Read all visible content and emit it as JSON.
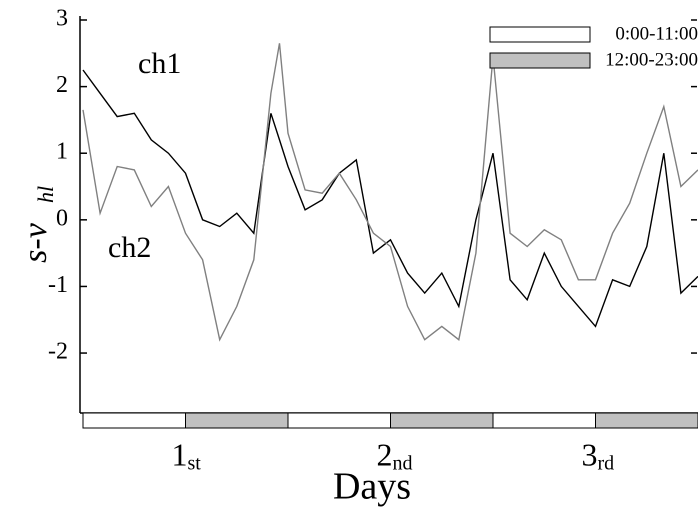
{
  "chart_data": {
    "type": "line",
    "xlabel": "Days",
    "ylabel": "s-v",
    "ylabel_sub": "hl",
    "xlim": [
      0,
      72
    ],
    "ylim": [
      -2.9,
      3
    ],
    "yticks": [
      -2,
      -1,
      0,
      1,
      2,
      3
    ],
    "xticks": [
      {
        "value": 12,
        "label": "1",
        "suffix": "st"
      },
      {
        "value": 36,
        "label": "2",
        "suffix": "nd"
      },
      {
        "value": 60,
        "label": "3",
        "suffix": "rd"
      }
    ],
    "x": [
      0,
      2,
      4,
      6,
      8,
      10,
      12,
      14,
      16,
      18,
      20,
      22,
      23,
      24,
      26,
      28,
      30,
      32,
      34,
      36,
      38,
      40,
      42,
      44,
      46,
      48,
      50,
      52,
      54,
      56,
      58,
      60,
      62,
      64,
      66,
      68,
      70,
      72
    ],
    "series": [
      {
        "name": "ch1",
        "color": "#000000",
        "values": [
          2.25,
          1.9,
          1.55,
          1.6,
          1.2,
          1.0,
          0.7,
          0.0,
          -0.1,
          0.1,
          -0.2,
          1.6,
          1.2,
          0.8,
          0.15,
          0.3,
          0.7,
          0.9,
          -0.5,
          -0.3,
          -0.8,
          -1.1,
          -0.8,
          -1.3,
          0.0,
          1.0,
          -0.9,
          -1.2,
          -0.5,
          -1.0,
          -1.3,
          -1.6,
          -0.9,
          -1.0,
          -0.4,
          1.0,
          -1.1,
          -0.85
        ]
      },
      {
        "name": "ch2",
        "color": "#808080",
        "values": [
          1.65,
          0.1,
          0.8,
          0.75,
          0.2,
          0.5,
          -0.2,
          -0.6,
          -1.8,
          -1.3,
          -0.6,
          1.9,
          2.65,
          1.3,
          0.45,
          0.4,
          0.7,
          0.3,
          -0.2,
          -0.4,
          -1.3,
          -1.8,
          -1.6,
          -1.8,
          -0.5,
          2.45,
          -0.2,
          -0.4,
          -0.15,
          -0.3,
          -0.9,
          -0.9,
          -0.2,
          0.25,
          1.0,
          1.7,
          0.5,
          0.75
        ]
      }
    ],
    "periods": [
      {
        "label": "0:00-11:00",
        "color": "#ffffff"
      },
      {
        "label": "12:00-23:00",
        "color": "#c0c0c0"
      }
    ],
    "bands": [
      {
        "start": 0,
        "end": 12,
        "period": 0
      },
      {
        "start": 12,
        "end": 24,
        "period": 1
      },
      {
        "start": 24,
        "end": 36,
        "period": 0
      },
      {
        "start": 36,
        "end": 48,
        "period": 1
      },
      {
        "start": 48,
        "end": 60,
        "period": 0
      },
      {
        "start": 60,
        "end": 72,
        "period": 1
      }
    ]
  }
}
